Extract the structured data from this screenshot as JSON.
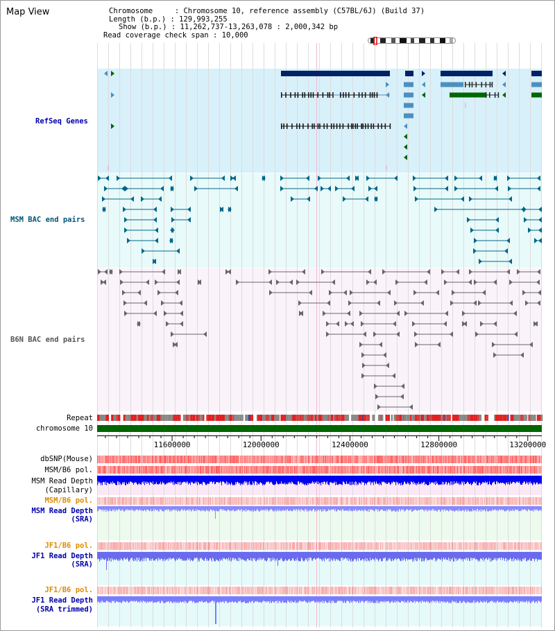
{
  "header": {
    "title": "Map View",
    "chromosome_line": "Chromosome     : Chromosome 10, reference assembly (C57BL/6J) (Build 37)",
    "length_line": "Length (b.p.) : 129,993,255",
    "show_line": "Show (b.p.) : 11,262,737-13,263,078 : 2,000,342 bp",
    "coverage_line": "Read coverage check span : 10,000"
  },
  "tracks": {
    "refseq": "RefSeq Genes",
    "msm_bac": "MSM BAC end pairs",
    "b6n_bac": "B6N BAC end pairs",
    "repeat": "Repeat",
    "chromosome": "chromosome 10",
    "dbsnp": "dbSNP(Mouse)",
    "msm_b6_pol": "MSM/B6 pol.",
    "msm_read_depth_cap_1": "MSM Read Depth",
    "msm_read_depth_cap_2": "(Capillary)",
    "msm_b6_pol_sra": "MSM/B6 pol.",
    "msm_read_depth_sra_1": "MSM Read Depth",
    "msm_read_depth_sra_2": "(SRA)",
    "jf1_b6_pol": "JF1/B6 pol.",
    "jf1_read_depth_1": "JF1 Read Depth",
    "jf1_read_depth_2": "(SRA)",
    "jf1_b6_pol_trim": "JF1/B6 pol.",
    "jf1_trim_1": "JF1 Read Depth",
    "jf1_trim_2": "(SRA trimmed)"
  },
  "axis": {
    "range_bp": [
      11262737,
      13263078
    ],
    "tick_labels": [
      "11600000",
      "12000000",
      "12400000",
      "12800000",
      "13200000"
    ],
    "tick_values": [
      11600000,
      12000000,
      12400000,
      12800000,
      13200000
    ]
  },
  "colors": {
    "refseq_bg": "#d8f0fa",
    "msm_bg": "#e8fafa",
    "b6n_bg": "#faf3fa",
    "gene_dark": "#002266",
    "gene_mid": "#4a90c0",
    "gene_green": "#006600",
    "bac_teal": "#006688",
    "bac_gray": "#666666",
    "chromosome_bar": "#006600",
    "snp_red": "#ff6060",
    "depth_blue": "#0000ee",
    "depth_light": "#7777ff"
  }
}
